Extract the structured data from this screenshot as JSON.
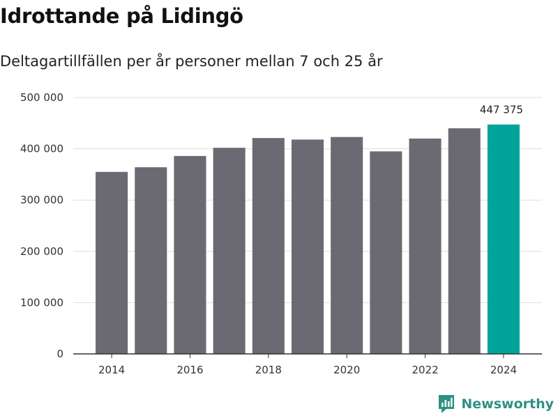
{
  "header": {
    "title": "Idrottande på Lidingö",
    "subtitle": "Deltagartillfällen per år personer mellan 7 och 25 år"
  },
  "brand": {
    "name": "Newsworthy",
    "icon": "newsworthy-logo-icon"
  },
  "colors": {
    "bar": "#6b6a72",
    "highlight": "#00a49a",
    "grid": "#dddddd",
    "axis": "#333333"
  },
  "chart_data": {
    "type": "bar",
    "title": "Idrottande på Lidingö",
    "subtitle": "Deltagartillfällen per år personer mellan 7 och 25 år",
    "xlabel": "",
    "ylabel": "",
    "categories": [
      "2014",
      "2015",
      "2016",
      "2017",
      "2018",
      "2019",
      "2020",
      "2021",
      "2022",
      "2023",
      "2024"
    ],
    "values": [
      355000,
      364000,
      386000,
      402000,
      421000,
      418000,
      423000,
      395000,
      420000,
      440000,
      447375
    ],
    "ylim": [
      0,
      500000
    ],
    "yticks": [
      {
        "value": 0,
        "label": "0"
      },
      {
        "value": 100000,
        "label": "100 000"
      },
      {
        "value": 200000,
        "label": "200 000"
      },
      {
        "value": 300000,
        "label": "300 000"
      },
      {
        "value": 400000,
        "label": "400 000"
      },
      {
        "value": 500000,
        "label": "500 000"
      }
    ],
    "xtick_labels": [
      "2014",
      "2016",
      "2018",
      "2020",
      "2022",
      "2024"
    ],
    "highlight_index": 10,
    "annotation": {
      "index": 10,
      "label": "447 375"
    },
    "grid": true,
    "legend": "none"
  }
}
